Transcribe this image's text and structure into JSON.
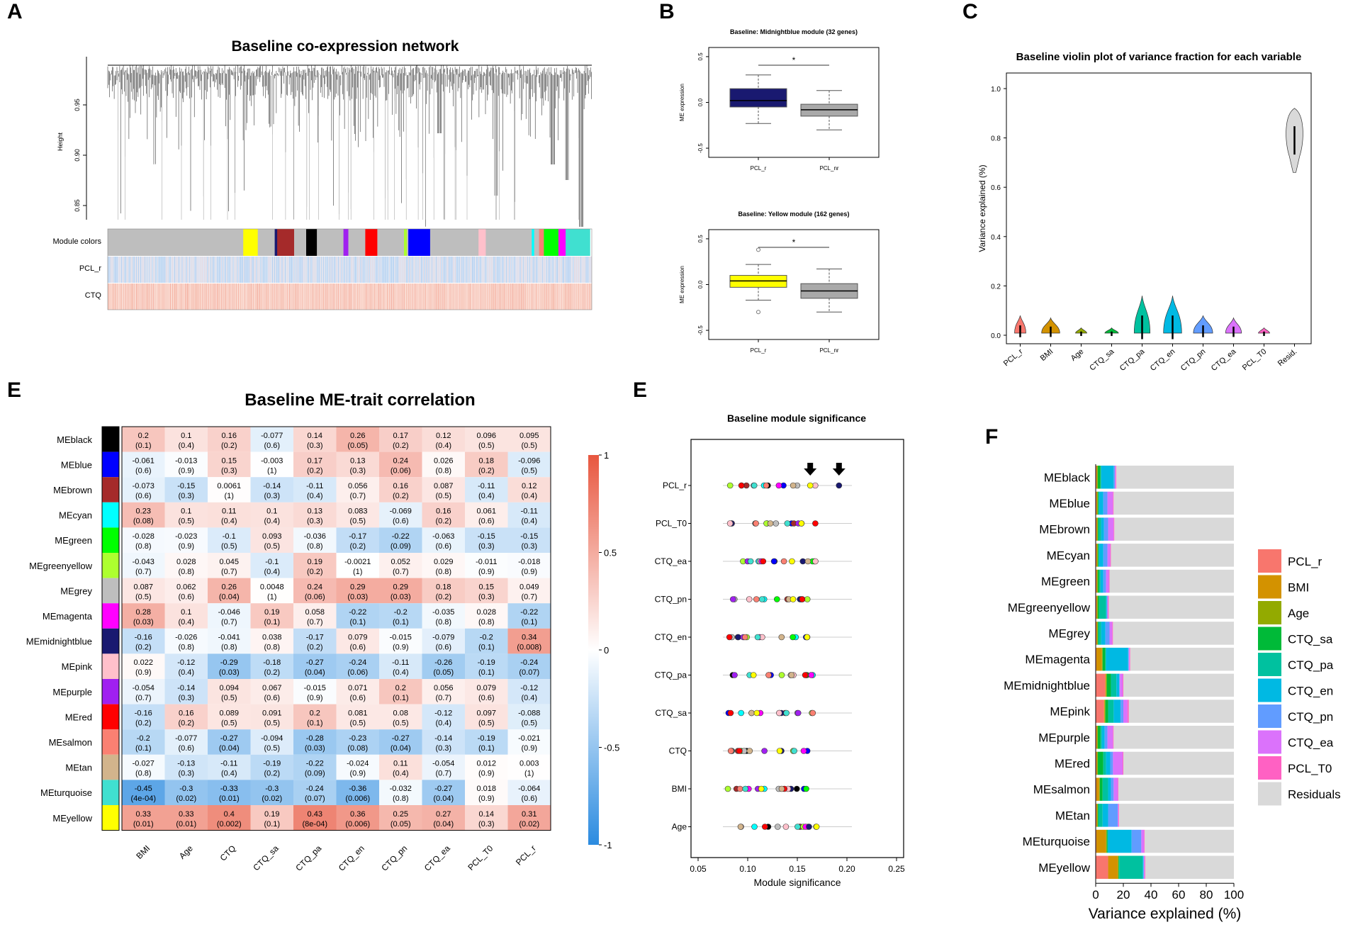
{
  "letters": {
    "a": "A",
    "b": "B",
    "c": "C",
    "e1": "E",
    "e2": "E",
    "f": "F"
  },
  "colors": {
    "pos": "#e8573f",
    "neg": "#2b8be0",
    "box_mid": "#191970",
    "box_yel": "#ffff00",
    "grey_bar": "#d9d9d9"
  },
  "panelA": {
    "title": "Baseline co-expression network",
    "ylabel": "Height",
    "yticks": [
      "0.95",
      "0.90",
      "0.85"
    ],
    "row_labels": [
      "Module colors",
      "PCL_r",
      "CTQ"
    ],
    "module_blocks": [
      {
        "color": "#bebebe",
        "w": 0.28
      },
      {
        "color": "#ffff00",
        "w": 0.03
      },
      {
        "color": "#bebebe",
        "w": 0.035
      },
      {
        "color": "#191970",
        "w": 0.005
      },
      {
        "color": "#a52a2a",
        "w": 0.035
      },
      {
        "color": "#bebebe",
        "w": 0.025
      },
      {
        "color": "#000000",
        "w": 0.022
      },
      {
        "color": "#bebebe",
        "w": 0.055
      },
      {
        "color": "#a020f0",
        "w": 0.01
      },
      {
        "color": "#bebebe",
        "w": 0.035
      },
      {
        "color": "#ff0000",
        "w": 0.025
      },
      {
        "color": "#bebebe",
        "w": 0.055
      },
      {
        "color": "#adff2f",
        "w": 0.006
      },
      {
        "color": "#bebebe",
        "w": 0.003
      },
      {
        "color": "#0000ff",
        "w": 0.045
      },
      {
        "color": "#bebebe",
        "w": 0.1
      },
      {
        "color": "#ffc0cb",
        "w": 0.015
      },
      {
        "color": "#bebebe",
        "w": 0.095
      },
      {
        "color": "#00ffff",
        "w": 0.005
      },
      {
        "color": "#bebebe",
        "w": 0.01
      },
      {
        "color": "#fa8072",
        "w": 0.01
      },
      {
        "color": "#00ff00",
        "w": 0.03
      },
      {
        "color": "#ff00ff",
        "w": 0.015
      },
      {
        "color": "#40e0d0",
        "w": 0.05
      }
    ]
  },
  "panelB": {
    "plots": [
      {
        "title": "Baseline: Midnightblue module (32 genes)",
        "ylabel": "ME expression",
        "yticks": [
          "0.5",
          "0.0",
          "-0.5"
        ],
        "star": "*",
        "xlabels": [
          "PCL_r",
          "PCL_nr"
        ],
        "fill": "#191970",
        "boxes": [
          {
            "q1": -0.05,
            "med": 0.02,
            "q3": 0.15,
            "wlo": -0.23,
            "whi": 0.3,
            "out": []
          },
          {
            "q1": -0.15,
            "med": -0.08,
            "q3": -0.02,
            "wlo": -0.3,
            "whi": 0.13,
            "out": []
          }
        ]
      },
      {
        "title": "Baseline: Yellow module (162 genes)",
        "ylabel": "ME expression",
        "yticks": [
          "0.5",
          "0.0",
          "-0.5"
        ],
        "star": "*",
        "xlabels": [
          "PCL_r",
          "PCL_nr"
        ],
        "fill": "#ffff00",
        "boxes": [
          {
            "q1": -0.03,
            "med": 0.04,
            "q3": 0.1,
            "wlo": -0.17,
            "whi": 0.22,
            "out": [
              0.38,
              -0.3
            ]
          },
          {
            "q1": -0.15,
            "med": -0.07,
            "q3": 0.01,
            "wlo": -0.3,
            "whi": 0.17,
            "out": []
          }
        ]
      }
    ]
  },
  "panelC": {
    "title": "Baseline violin plot of variance fraction for each variable",
    "ylabel": "Variance explained (%)",
    "yticks": [
      "1.0",
      "0.8",
      "0.6",
      "0.4",
      "0.2",
      "0.0"
    ],
    "violins": [
      {
        "label": "PCL_r",
        "color": "#f8766d",
        "max": 0.08,
        "w": 0.5
      },
      {
        "label": "BMI",
        "color": "#d39200",
        "max": 0.07,
        "w": 0.8
      },
      {
        "label": "Age",
        "color": "#93aa00",
        "max": 0.03,
        "w": 0.5
      },
      {
        "label": "CTQ_sa",
        "color": "#00ba38",
        "max": 0.03,
        "w": 0.6
      },
      {
        "label": "CTQ_pa",
        "color": "#00c19f",
        "max": 0.16,
        "w": 0.7
      },
      {
        "label": "CTQ_en",
        "color": "#00b9e3",
        "max": 0.16,
        "w": 0.8
      },
      {
        "label": "CTQ_pn",
        "color": "#619cff",
        "max": 0.08,
        "w": 0.85
      },
      {
        "label": "CTQ_ea",
        "color": "#db72fb",
        "max": 0.07,
        "w": 0.7
      },
      {
        "label": "PCL_T0",
        "color": "#ff61c3",
        "max": 0.03,
        "w": 0.5
      },
      {
        "label": "Resid.",
        "color": "#d9d9d9",
        "min": 0.66,
        "max": 0.92,
        "w": 0.9
      }
    ]
  },
  "panelE": {
    "title": "Baseline ME-trait correlation",
    "modules": [
      {
        "name": "MEblack",
        "color": "#000000"
      },
      {
        "name": "MEblue",
        "color": "#0000ff"
      },
      {
        "name": "MEbrown",
        "color": "#a52a2a"
      },
      {
        "name": "MEcyan",
        "color": "#00ffff"
      },
      {
        "name": "MEgreen",
        "color": "#00ff00"
      },
      {
        "name": "MEgreenyellow",
        "color": "#adff2f"
      },
      {
        "name": "MEgrey",
        "color": "#bebebe"
      },
      {
        "name": "MEmagenta",
        "color": "#ff00ff"
      },
      {
        "name": "MEmidnightblue",
        "color": "#191970"
      },
      {
        "name": "MEpink",
        "color": "#ffc0cb"
      },
      {
        "name": "MEpurple",
        "color": "#a020f0"
      },
      {
        "name": "MEred",
        "color": "#ff0000"
      },
      {
        "name": "MEsalmon",
        "color": "#fa8072"
      },
      {
        "name": "MEtan",
        "color": "#d2b48c"
      },
      {
        "name": "MEturquoise",
        "color": "#40e0d0"
      },
      {
        "name": "MEyellow",
        "color": "#ffff00"
      }
    ],
    "traits": [
      "BMI",
      "Age",
      "CTQ",
      "CTQ_sa",
      "CTQ_pa",
      "CTQ_en",
      "CTQ_pn",
      "CTQ_ea",
      "PCL_T0",
      "PCL_r"
    ],
    "r": [
      [
        0.2,
        0.1,
        0.16,
        -0.077,
        0.14,
        0.26,
        0.17,
        0.12,
        0.096,
        0.095
      ],
      [
        -0.061,
        -0.013,
        0.15,
        -0.003,
        0.17,
        0.13,
        0.24,
        0.026,
        0.18,
        -0.096
      ],
      [
        -0.073,
        -0.15,
        0.0061,
        -0.14,
        -0.11,
        0.056,
        0.16,
        0.087,
        -0.11,
        0.12
      ],
      [
        0.23,
        0.1,
        0.11,
        0.1,
        0.13,
        0.083,
        -0.069,
        0.16,
        0.061,
        -0.11
      ],
      [
        -0.028,
        -0.023,
        -0.1,
        0.093,
        -0.036,
        -0.17,
        -0.22,
        -0.063,
        -0.15,
        -0.15
      ],
      [
        -0.043,
        0.028,
        0.045,
        -0.1,
        0.19,
        -0.0021,
        0.052,
        0.029,
        -0.011,
        -0.018
      ],
      [
        0.087,
        0.062,
        0.26,
        0.0048,
        0.24,
        0.29,
        0.29,
        0.18,
        0.15,
        0.049
      ],
      [
        0.28,
        0.1,
        -0.046,
        0.19,
        0.058,
        -0.22,
        -0.2,
        -0.035,
        0.028,
        -0.22
      ],
      [
        -0.16,
        -0.026,
        -0.041,
        0.038,
        -0.17,
        0.079,
        -0.015,
        -0.079,
        -0.2,
        0.34
      ],
      [
        0.022,
        -0.12,
        -0.29,
        -0.18,
        -0.27,
        -0.24,
        -0.11,
        -0.26,
        -0.19,
        -0.24
      ],
      [
        -0.054,
        -0.14,
        0.094,
        0.067,
        -0.015,
        0.071,
        0.2,
        0.056,
        0.079,
        -0.12
      ],
      [
        -0.16,
        0.16,
        0.089,
        0.091,
        0.2,
        0.081,
        0.08,
        -0.12,
        0.097,
        -0.088
      ],
      [
        -0.2,
        -0.077,
        -0.27,
        -0.094,
        -0.28,
        -0.23,
        -0.27,
        -0.14,
        -0.19,
        -0.021
      ],
      [
        -0.027,
        -0.13,
        -0.11,
        -0.19,
        -0.22,
        -0.024,
        0.11,
        -0.054,
        0.012,
        0.003
      ],
      [
        -0.45,
        -0.3,
        -0.33,
        -0.3,
        -0.24,
        -0.36,
        -0.032,
        -0.27,
        0.018,
        -0.064
      ],
      [
        0.33,
        0.33,
        0.4,
        0.19,
        0.43,
        0.36,
        0.25,
        0.27,
        0.14,
        0.31
      ]
    ],
    "r_text": [
      [
        "0.2",
        "0.1",
        "0.16",
        "-0.077",
        "0.14",
        "0.26",
        "0.17",
        "0.12",
        "0.096",
        "0.095"
      ],
      [
        "-0.061",
        "-0.013",
        "0.15",
        "-0.003",
        "0.17",
        "0.13",
        "0.24",
        "0.026",
        "0.18",
        "-0.096"
      ],
      [
        "-0.073",
        "-0.15",
        "0.0061",
        "-0.14",
        "-0.11",
        "0.056",
        "0.16",
        "0.087",
        "-0.11",
        "0.12"
      ],
      [
        "0.23",
        "0.1",
        "0.11",
        "0.1",
        "0.13",
        "0.083",
        "-0.069",
        "0.16",
        "0.061",
        "-0.11"
      ],
      [
        "-0.028",
        "-0.023",
        "-0.1",
        "0.093",
        "-0.036",
        "-0.17",
        "-0.22",
        "-0.063",
        "-0.15",
        "-0.15"
      ],
      [
        "-0.043",
        "0.028",
        "0.045",
        "-0.1",
        "0.19",
        "-0.0021",
        "0.052",
        "0.029",
        "-0.011",
        "-0.018"
      ],
      [
        "0.087",
        "0.062",
        "0.26",
        "0.0048",
        "0.24",
        "0.29",
        "0.29",
        "0.18",
        "0.15",
        "0.049"
      ],
      [
        "0.28",
        "0.1",
        "-0.046",
        "0.19",
        "0.058",
        "-0.22",
        "-0.2",
        "-0.035",
        "0.028",
        "-0.22"
      ],
      [
        "-0.16",
        "-0.026",
        "-0.041",
        "0.038",
        "-0.17",
        "0.079",
        "-0.015",
        "-0.079",
        "-0.2",
        "0.34"
      ],
      [
        "0.022",
        "-0.12",
        "-0.29",
        "-0.18",
        "-0.27",
        "-0.24",
        "-0.11",
        "-0.26",
        "-0.19",
        "-0.24"
      ],
      [
        "-0.054",
        "-0.14",
        "0.094",
        "0.067",
        "-0.015",
        "0.071",
        "0.2",
        "0.056",
        "0.079",
        "-0.12"
      ],
      [
        "-0.16",
        "0.16",
        "0.089",
        "0.091",
        "0.2",
        "0.081",
        "0.08",
        "-0.12",
        "0.097",
        "-0.088"
      ],
      [
        "-0.2",
        "-0.077",
        "-0.27",
        "-0.094",
        "-0.28",
        "-0.23",
        "-0.27",
        "-0.14",
        "-0.19",
        "-0.021"
      ],
      [
        "-0.027",
        "-0.13",
        "-0.11",
        "-0.19",
        "-0.22",
        "-0.024",
        "0.11",
        "-0.054",
        "0.012",
        "0.003"
      ],
      [
        "-0.45",
        "-0.3",
        "-0.33",
        "-0.3",
        "-0.24",
        "-0.36",
        "-0.032",
        "-0.27",
        "0.018",
        "-0.064"
      ],
      [
        "0.33",
        "0.33",
        "0.4",
        "0.19",
        "0.43",
        "0.36",
        "0.25",
        "0.27",
        "0.14",
        "0.31"
      ]
    ],
    "p_text": [
      [
        "(0.1)",
        "(0.4)",
        "(0.2)",
        "(0.6)",
        "(0.3)",
        "(0.05)",
        "(0.2)",
        "(0.4)",
        "(0.5)",
        "(0.5)"
      ],
      [
        "(0.6)",
        "(0.9)",
        "(0.3)",
        "(1)",
        "(0.2)",
        "(0.3)",
        "(0.06)",
        "(0.8)",
        "(0.2)",
        "(0.5)"
      ],
      [
        "(0.6)",
        "(0.3)",
        "(1)",
        "(0.3)",
        "(0.4)",
        "(0.7)",
        "(0.2)",
        "(0.5)",
        "(0.4)",
        "(0.4)"
      ],
      [
        "(0.08)",
        "(0.5)",
        "(0.4)",
        "(0.4)",
        "(0.3)",
        "(0.5)",
        "(0.6)",
        "(0.2)",
        "(0.6)",
        "(0.4)"
      ],
      [
        "(0.8)",
        "(0.9)",
        "(0.5)",
        "(0.5)",
        "(0.8)",
        "(0.2)",
        "(0.09)",
        "(0.6)",
        "(0.3)",
        "(0.3)"
      ],
      [
        "(0.7)",
        "(0.8)",
        "(0.7)",
        "(0.4)",
        "(0.2)",
        "(1)",
        "(0.7)",
        "(0.8)",
        "(0.9)",
        "(0.9)"
      ],
      [
        "(0.5)",
        "(0.6)",
        "(0.04)",
        "(1)",
        "(0.06)",
        "(0.03)",
        "(0.03)",
        "(0.2)",
        "(0.3)",
        "(0.7)"
      ],
      [
        "(0.03)",
        "(0.4)",
        "(0.7)",
        "(0.1)",
        "(0.7)",
        "(0.1)",
        "(0.1)",
        "(0.8)",
        "(0.8)",
        "(0.1)"
      ],
      [
        "(0.2)",
        "(0.8)",
        "(0.8)",
        "(0.8)",
        "(0.2)",
        "(0.6)",
        "(0.9)",
        "(0.6)",
        "(0.1)",
        "(0.008)"
      ],
      [
        "(0.9)",
        "(0.4)",
        "(0.03)",
        "(0.2)",
        "(0.04)",
        "(0.06)",
        "(0.4)",
        "(0.05)",
        "(0.1)",
        "(0.07)"
      ],
      [
        "(0.7)",
        "(0.3)",
        "(0.5)",
        "(0.6)",
        "(0.9)",
        "(0.6)",
        "(0.1)",
        "(0.7)",
        "(0.6)",
        "(0.4)"
      ],
      [
        "(0.2)",
        "(0.2)",
        "(0.5)",
        "(0.5)",
        "(0.1)",
        "(0.5)",
        "(0.5)",
        "(0.4)",
        "(0.5)",
        "(0.5)"
      ],
      [
        "(0.1)",
        "(0.6)",
        "(0.04)",
        "(0.5)",
        "(0.03)",
        "(0.08)",
        "(0.04)",
        "(0.3)",
        "(0.1)",
        "(0.9)"
      ],
      [
        "(0.8)",
        "(0.3)",
        "(0.4)",
        "(0.2)",
        "(0.09)",
        "(0.9)",
        "(0.4)",
        "(0.7)",
        "(0.9)",
        "(1)"
      ],
      [
        "(4e-04)",
        "(0.02)",
        "(0.01)",
        "(0.02)",
        "(0.07)",
        "(0.006)",
        "(0.8)",
        "(0.04)",
        "(0.9)",
        "(0.6)"
      ],
      [
        "(0.01)",
        "(0.01)",
        "(0.002)",
        "(0.1)",
        "(8e-04)",
        "(0.006)",
        "(0.05)",
        "(0.04)",
        "(0.3)",
        "(0.02)"
      ]
    ],
    "legend_ticks": [
      "1",
      "0.5",
      "0",
      "-0.5",
      "-1"
    ]
  },
  "panelE2": {
    "title": "Baseline module significance",
    "xlabel": "Module significance",
    "xticks": [
      "0.05",
      "0.10",
      "0.15",
      "0.20",
      "0.25"
    ],
    "xrange": [
      0.05,
      0.25
    ],
    "traits": [
      "PCL_r",
      "PCL_T0",
      "CTQ_ea",
      "CTQ_pn",
      "CTQ_en",
      "CTQ_pa",
      "CTQ_sa",
      "CTQ",
      "BMI",
      "Age"
    ],
    "arrows_at": [
      0.163,
      0.192
    ]
  },
  "panelF": {
    "xlabel": "Variance explained (%)",
    "xticks": [
      "0",
      "20",
      "40",
      "60",
      "80",
      "100"
    ],
    "legend": [
      {
        "label": "PCL_r",
        "color": "#f8766d"
      },
      {
        "label": "BMI",
        "color": "#d39200"
      },
      {
        "label": "Age",
        "color": "#93aa00"
      },
      {
        "label": "CTQ_sa",
        "color": "#00ba38"
      },
      {
        "label": "CTQ_pa",
        "color": "#00c19f"
      },
      {
        "label": "CTQ_en",
        "color": "#00b9e3"
      },
      {
        "label": "CTQ_pn",
        "color": "#619cff"
      },
      {
        "label": "CTQ_ea",
        "color": "#db72fb"
      },
      {
        "label": "PCL_T0",
        "color": "#ff61c3"
      },
      {
        "label": "Residuals",
        "color": "#d9d9d9"
      }
    ],
    "modules": [
      "MEblack",
      "MEblue",
      "MEbrown",
      "MEcyan",
      "MEgreen",
      "MEgreenyellow",
      "MEgrey",
      "MEmagenta",
      "MEmidnightblue",
      "MEpink",
      "MEpurple",
      "MEred",
      "MEsalmon",
      "MEtan",
      "MEturquoise",
      "MEyellow"
    ],
    "stacks": [
      [
        0.5,
        0.5,
        0.5,
        2,
        0.5,
        9,
        1,
        0.5,
        0.5
      ],
      [
        0.5,
        0.5,
        0.5,
        0.5,
        0.5,
        3,
        3,
        4,
        0.5
      ],
      [
        0.5,
        0.5,
        0.5,
        0.5,
        2,
        2,
        3,
        4,
        0.5
      ],
      [
        0.5,
        0.5,
        0.5,
        0.5,
        0.5,
        3,
        3,
        2,
        0.5
      ],
      [
        0.5,
        0.5,
        0.5,
        1,
        1,
        2,
        2,
        2,
        0.5
      ],
      [
        0.5,
        0.5,
        0.5,
        1,
        5,
        0.5,
        0.5,
        0.5,
        0.5
      ],
      [
        0.5,
        0.5,
        0.5,
        0.5,
        2,
        3,
        3,
        2,
        0.5
      ],
      [
        0.5,
        4,
        0.5,
        2,
        0.5,
        16,
        0.5,
        0.5,
        0.5
      ],
      [
        7,
        0.5,
        0.5,
        3,
        4,
        2,
        0.5,
        2,
        0.5
      ],
      [
        6,
        0.5,
        0.5,
        2,
        4,
        5,
        2,
        3,
        1
      ],
      [
        0.5,
        0.5,
        0.5,
        2,
        1,
        2,
        2,
        4,
        0.5
      ],
      [
        0.5,
        0.5,
        0.5,
        4,
        2,
        3,
        2,
        7,
        0.5
      ],
      [
        0.5,
        2,
        0.5,
        2,
        4,
        2,
        2,
        3,
        0.5
      ],
      [
        0.5,
        0.5,
        0.5,
        0.5,
        3,
        4,
        7,
        0.5,
        0.5
      ],
      [
        0.5,
        7,
        0.5,
        0.5,
        0.5,
        17,
        7,
        2,
        0.5
      ],
      [
        9,
        7,
        0.5,
        0.5,
        17,
        0.5,
        0.5,
        0.5,
        0.5
      ]
    ]
  }
}
